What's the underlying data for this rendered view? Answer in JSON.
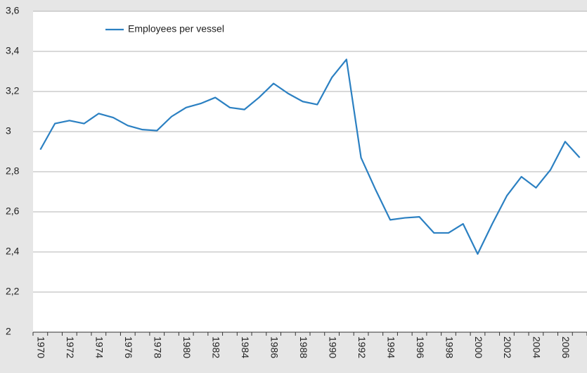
{
  "chart_data": {
    "type": "line",
    "categories": [
      "1970",
      null,
      "1972",
      null,
      "1974",
      null,
      "1976",
      null,
      "1978",
      null,
      "1980",
      null,
      "1982",
      null,
      "1984",
      null,
      "1986",
      null,
      "1988",
      null,
      "1990",
      null,
      "1992",
      null,
      "1994",
      null,
      "1996",
      null,
      "1998",
      null,
      "2000",
      null,
      "2002",
      null,
      "2004",
      null,
      "2006",
      null
    ],
    "series": [
      {
        "name": "Employees per vessel",
        "color": "#2b80c2",
        "values": [
          2.91,
          3.04,
          3.055,
          3.04,
          3.09,
          3.07,
          3.03,
          3.01,
          3.005,
          3.075,
          3.12,
          3.14,
          3.17,
          3.12,
          3.11,
          3.17,
          3.24,
          3.19,
          3.15,
          3.135,
          3.27,
          3.36,
          2.87,
          2.71,
          2.56,
          2.57,
          2.575,
          2.495,
          2.495,
          2.54,
          2.39,
          2.54,
          2.68,
          2.775,
          2.72,
          2.81,
          2.95,
          2.87
        ]
      }
    ],
    "ylim": [
      2,
      3.6
    ],
    "yticks": [
      2,
      {
        "value": 2.2,
        "label": "2,2"
      },
      {
        "value": 2.4,
        "label": "2,4"
      },
      {
        "value": 2.6,
        "label": "2,6"
      },
      {
        "value": 2.8,
        "label": "2,8"
      },
      3,
      {
        "value": 3.2,
        "label": "3,2"
      },
      {
        "value": 3.4,
        "label": "3,4"
      },
      {
        "value": 3.6,
        "label": "3,6"
      }
    ],
    "grid": true,
    "legend": "top-left"
  }
}
